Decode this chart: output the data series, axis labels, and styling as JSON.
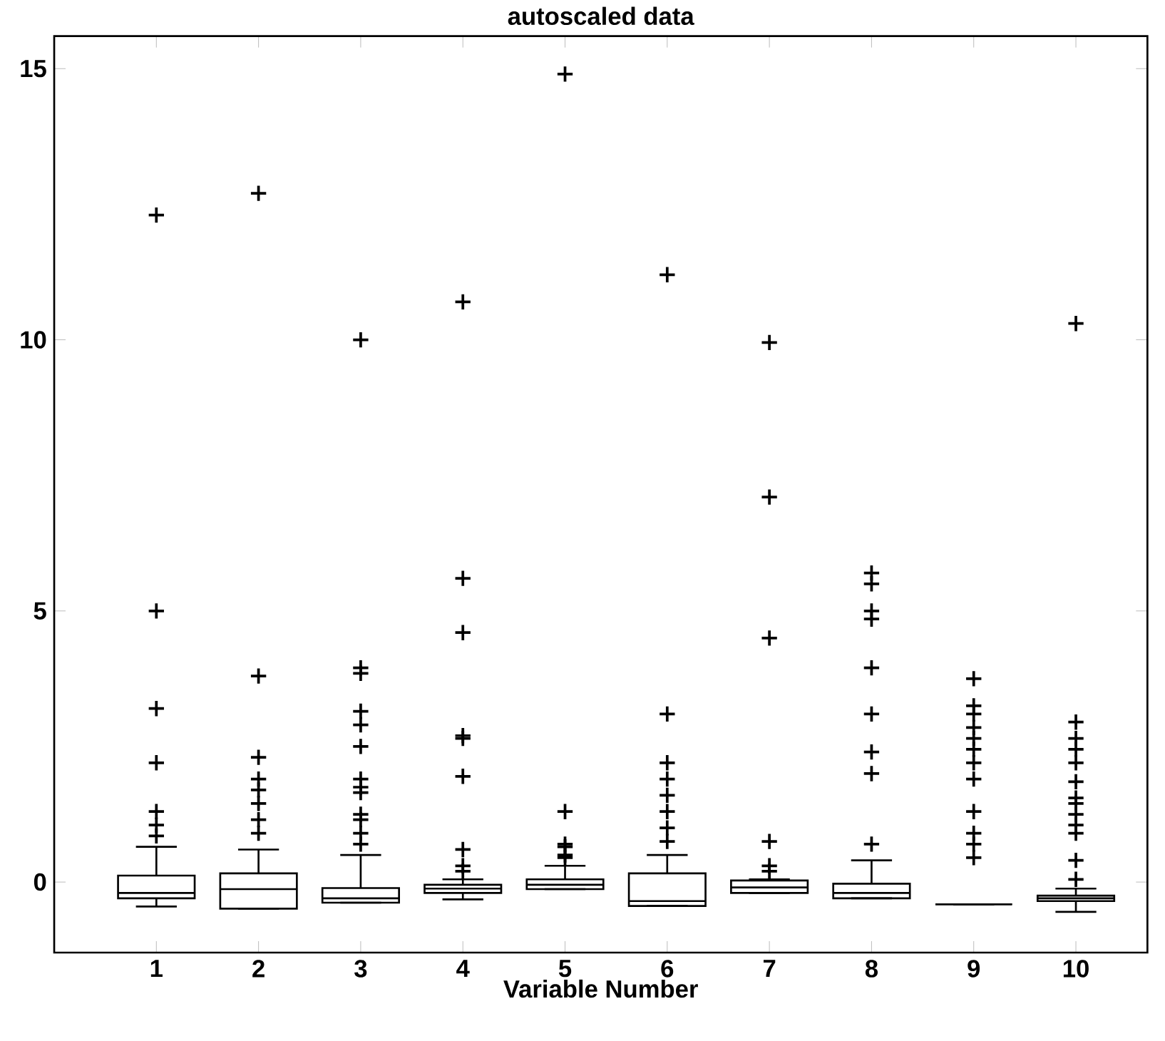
{
  "chart_data": {
    "type": "box",
    "title": "autoscaled data",
    "xlabel": "Variable Number",
    "categories": [
      "1",
      "2",
      "3",
      "4",
      "5",
      "6",
      "7",
      "8",
      "9",
      "10"
    ],
    "ylim": [
      -1.3,
      15.6
    ],
    "yticks": [
      0,
      5,
      10,
      15
    ],
    "grid": false,
    "color": "#000000",
    "boxes": [
      {
        "low": -0.45,
        "q1": -0.3,
        "median": -0.2,
        "q3": 0.12,
        "high": 0.65,
        "outliers": [
          12.3,
          5.0,
          3.2,
          2.2,
          1.3,
          1.05,
          0.85
        ]
      },
      {
        "low": -0.49,
        "q1": -0.49,
        "median": -0.13,
        "q3": 0.16,
        "high": 0.6,
        "outliers": [
          12.7,
          3.8,
          2.3,
          1.9,
          1.7,
          1.45,
          1.15,
          0.9
        ]
      },
      {
        "low": -0.38,
        "q1": -0.38,
        "median": -0.3,
        "q3": -0.11,
        "high": 0.5,
        "outliers": [
          10.0,
          3.95,
          3.85,
          3.15,
          2.9,
          2.5,
          1.9,
          1.75,
          1.65,
          1.25,
          1.15,
          0.9,
          0.7
        ]
      },
      {
        "low": -0.32,
        "q1": -0.2,
        "median": -0.12,
        "q3": -0.05,
        "high": 0.05,
        "outliers": [
          10.7,
          5.6,
          4.6,
          2.7,
          2.65,
          1.95,
          0.6,
          0.3,
          0.2
        ]
      },
      {
        "low": -0.13,
        "q1": -0.13,
        "median": -0.05,
        "q3": 0.05,
        "high": 0.3,
        "outliers": [
          14.9,
          1.3,
          0.7,
          0.65,
          0.5,
          0.45
        ]
      },
      {
        "low": -0.44,
        "q1": -0.44,
        "median": -0.35,
        "q3": 0.16,
        "high": 0.5,
        "outliers": [
          11.2,
          3.1,
          2.2,
          1.9,
          1.6,
          1.3,
          1.0,
          0.75
        ]
      },
      {
        "low": -0.2,
        "q1": -0.2,
        "median": -0.1,
        "q3": 0.03,
        "high": 0.05,
        "outliers": [
          9.95,
          7.1,
          4.5,
          0.75,
          0.3,
          0.2
        ]
      },
      {
        "low": -0.3,
        "q1": -0.3,
        "median": -0.2,
        "q3": -0.03,
        "high": 0.4,
        "outliers": [
          5.7,
          5.5,
          5.0,
          4.85,
          3.95,
          3.1,
          2.4,
          2.0,
          0.7
        ]
      },
      {
        "low": -0.41,
        "q1": -0.41,
        "median": -0.41,
        "q3": -0.41,
        "high": -0.41,
        "outliers": [
          3.75,
          3.25,
          3.1,
          2.85,
          2.65,
          2.45,
          2.2,
          1.9,
          1.3,
          0.9,
          0.7,
          0.45
        ]
      },
      {
        "low": -0.55,
        "q1": -0.35,
        "median": -0.3,
        "q3": -0.25,
        "high": -0.12,
        "outliers": [
          10.3,
          2.95,
          2.65,
          2.45,
          2.2,
          1.85,
          1.55,
          1.45,
          1.25,
          1.05,
          0.9,
          0.4,
          0.05
        ]
      }
    ]
  }
}
